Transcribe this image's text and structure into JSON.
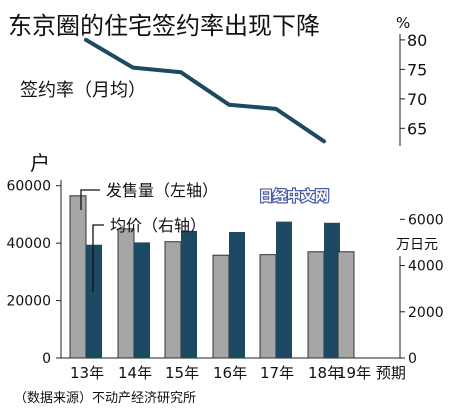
{
  "chart_data": [
    {
      "type": "line",
      "title": "东京圈的住宅签约率出现下降",
      "unit": "%",
      "series": [
        {
          "name": "签约率（月均）",
          "values": [
            80,
            75.3,
            74.5,
            69,
            68.3,
            62.8
          ]
        }
      ],
      "x": [
        "13年",
        "14年",
        "15年",
        "16年",
        "17年",
        "18年"
      ],
      "ylim": [
        62,
        81
      ],
      "yticks": [
        65,
        70,
        75,
        80
      ]
    },
    {
      "type": "bar",
      "categories": [
        "13年",
        "14年",
        "15年",
        "16年",
        "17年",
        "18年",
        "19年 预期"
      ],
      "y_left_label": "户",
      "y_right_label": "万日元",
      "series": [
        {
          "name": "发售量（左轴）",
          "axis": "left",
          "color": "#a6a6a6",
          "values": [
            56500,
            45000,
            40500,
            35800,
            36000,
            37000,
            37000
          ]
        },
        {
          "name": "均价（右轴）",
          "axis": "right",
          "color": "#1c4a63",
          "values": [
            4900,
            5000,
            5500,
            5450,
            5900,
            5850,
            null
          ]
        }
      ],
      "ylim_left": [
        0,
        62000
      ],
      "ylim_right": [
        0,
        7700
      ],
      "yticks_left": [
        0,
        20000,
        40000,
        60000
      ],
      "yticks_right": [
        0,
        2000,
        4000,
        6000
      ]
    }
  ],
  "source": "（数据来源）不动产经济研究所",
  "watermark": "日经中文网",
  "colors": {
    "line": "#1c4a63",
    "bar_gray": "#a6a6a6",
    "bar_dark": "#1c4a63",
    "watermark": "#4a5aa8"
  }
}
